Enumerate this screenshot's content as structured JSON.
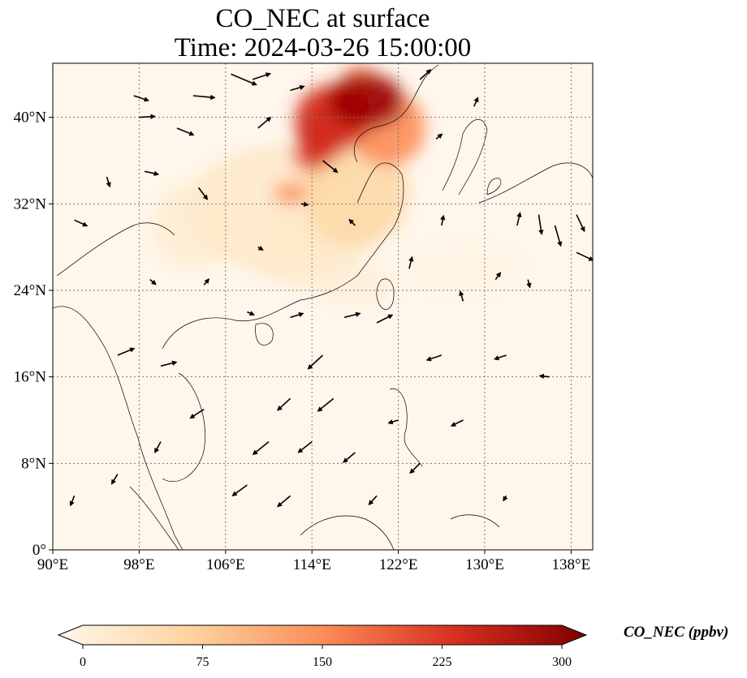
{
  "title": {
    "line1": "CO_NEC at surface",
    "line2": "Time: 2024-03-26 15:00:00"
  },
  "map": {
    "lon_range": [
      90,
      140
    ],
    "lat_range": [
      0,
      45
    ],
    "x_ticks": [
      {
        "value": 90,
        "label": "90°E"
      },
      {
        "value": 98,
        "label": "98°E"
      },
      {
        "value": 106,
        "label": "106°E"
      },
      {
        "value": 114,
        "label": "114°E"
      },
      {
        "value": 122,
        "label": "122°E"
      },
      {
        "value": 130,
        "label": "130°E"
      },
      {
        "value": 138,
        "label": "138°E"
      }
    ],
    "y_ticks": [
      {
        "value": 0,
        "label": "0°"
      },
      {
        "value": 8,
        "label": "8°N"
      },
      {
        "value": 16,
        "label": "16°N"
      },
      {
        "value": 24,
        "label": "24°N"
      },
      {
        "value": 32,
        "label": "32°N"
      },
      {
        "value": 40,
        "label": "40°N"
      }
    ],
    "gridlines": true,
    "colormap": "OrRd",
    "plumes": [
      {
        "lon": 111.5,
        "lat": 31.5,
        "rlon": 9,
        "rlat": 6,
        "value": 35
      },
      {
        "lon": 103,
        "lat": 30,
        "rlon": 4,
        "rlat": 4,
        "value": 25
      },
      {
        "lon": 118,
        "lat": 33,
        "rlon": 5,
        "rlat": 5,
        "value": 65
      },
      {
        "lon": 121,
        "lat": 39,
        "rlon": 3.5,
        "rlat": 3.5,
        "value": 150
      },
      {
        "lon": 116,
        "lat": 40,
        "rlon": 3.5,
        "rlat": 3,
        "value": 230
      },
      {
        "lon": 119,
        "lat": 41.5,
        "rlon": 3.5,
        "rlat": 2.5,
        "value": 280
      },
      {
        "lon": 115,
        "lat": 38.5,
        "rlon": 2.5,
        "rlat": 2.5,
        "value": 230
      },
      {
        "lon": 114,
        "lat": 36.5,
        "rlon": 1.8,
        "rlat": 1.5,
        "value": 210
      },
      {
        "lon": 112,
        "lat": 33,
        "rlon": 1.5,
        "rlat": 1,
        "value": 150
      },
      {
        "lon": 118.5,
        "lat": 43.5,
        "rlon": 1.8,
        "rlat": 1.2,
        "value": 180
      },
      {
        "lon": 113.5,
        "lat": 27.5,
        "rlon": 5,
        "rlat": 3.5,
        "value": 25
      },
      {
        "lon": 118,
        "lat": 24.5,
        "rlon": 4,
        "rlat": 2,
        "value": 18
      },
      {
        "lon": 128,
        "lat": 26,
        "rlon": 6,
        "rlat": 2.5,
        "value": 8
      }
    ],
    "wind_vectors": [
      {
        "lon": 106.5,
        "lat": 44,
        "u": 2.6,
        "v": -1.1
      },
      {
        "lon": 108.5,
        "lat": 43.5,
        "u": 1.8,
        "v": 0.6
      },
      {
        "lon": 112,
        "lat": 42.5,
        "u": 1.4,
        "v": 0.4
      },
      {
        "lon": 97.5,
        "lat": 42,
        "u": 1.5,
        "v": -0.5
      },
      {
        "lon": 103,
        "lat": 42,
        "u": 2.2,
        "v": -0.2
      },
      {
        "lon": 98,
        "lat": 40,
        "u": 1.6,
        "v": 0.1
      },
      {
        "lon": 101.5,
        "lat": 39,
        "u": 1.7,
        "v": -0.7
      },
      {
        "lon": 109,
        "lat": 39,
        "u": 1.3,
        "v": 1.1
      },
      {
        "lon": 115,
        "lat": 36,
        "u": 1.5,
        "v": -1.2
      },
      {
        "lon": 124,
        "lat": 43.5,
        "u": 1.1,
        "v": 1.0
      },
      {
        "lon": 129,
        "lat": 41,
        "u": 0.4,
        "v": 0.9
      },
      {
        "lon": 125.5,
        "lat": 38,
        "u": 0.6,
        "v": 0.5
      },
      {
        "lon": 92,
        "lat": 30.5,
        "u": 1.3,
        "v": -0.6
      },
      {
        "lon": 95,
        "lat": 34.5,
        "u": 0.3,
        "v": -1.0
      },
      {
        "lon": 98.5,
        "lat": 35,
        "u": 1.4,
        "v": -0.3
      },
      {
        "lon": 103.5,
        "lat": 33.5,
        "u": 0.9,
        "v": -1.2
      },
      {
        "lon": 99,
        "lat": 25,
        "u": 0.6,
        "v": -0.5
      },
      {
        "lon": 104,
        "lat": 24.5,
        "u": 0.5,
        "v": 0.6
      },
      {
        "lon": 108,
        "lat": 22,
        "u": 0.7,
        "v": -0.3
      },
      {
        "lon": 96,
        "lat": 18,
        "u": 1.7,
        "v": 0.7
      },
      {
        "lon": 100,
        "lat": 17,
        "u": 1.6,
        "v": 0.4
      },
      {
        "lon": 112,
        "lat": 21.5,
        "u": 1.3,
        "v": 0.4
      },
      {
        "lon": 117,
        "lat": 21.5,
        "u": 1.6,
        "v": 0.4
      },
      {
        "lon": 120,
        "lat": 21,
        "u": 1.6,
        "v": 0.8
      },
      {
        "lon": 115,
        "lat": 18,
        "u": -1.5,
        "v": -1.4
      },
      {
        "lon": 112,
        "lat": 14,
        "u": -1.3,
        "v": -1.2
      },
      {
        "lon": 116,
        "lat": 14,
        "u": -1.6,
        "v": -1.3
      },
      {
        "lon": 110,
        "lat": 10,
        "u": -1.6,
        "v": -1.3
      },
      {
        "lon": 114,
        "lat": 10,
        "u": -1.4,
        "v": -1.1
      },
      {
        "lon": 118,
        "lat": 9,
        "u": -1.2,
        "v": -1.0
      },
      {
        "lon": 108,
        "lat": 6,
        "u": -1.5,
        "v": -1.1
      },
      {
        "lon": 112,
        "lat": 5,
        "u": -1.3,
        "v": -1.1
      },
      {
        "lon": 104,
        "lat": 13,
        "u": -1.4,
        "v": -0.9
      },
      {
        "lon": 100,
        "lat": 10,
        "u": -0.6,
        "v": -1.1
      },
      {
        "lon": 96,
        "lat": 7,
        "u": -0.6,
        "v": -1.0
      },
      {
        "lon": 92,
        "lat": 5,
        "u": -0.4,
        "v": -1.0
      },
      {
        "lon": 120,
        "lat": 5,
        "u": -0.8,
        "v": -0.9
      },
      {
        "lon": 124,
        "lat": 8,
        "u": -1.0,
        "v": -1.0
      },
      {
        "lon": 128,
        "lat": 12,
        "u": -1.2,
        "v": -0.6
      },
      {
        "lon": 126,
        "lat": 18,
        "u": -1.5,
        "v": -0.5
      },
      {
        "lon": 132,
        "lat": 18,
        "u": -1.2,
        "v": -0.4
      },
      {
        "lon": 136,
        "lat": 16,
        "u": -1.0,
        "v": 0.1
      },
      {
        "lon": 132,
        "lat": 5,
        "u": -0.3,
        "v": -0.5
      },
      {
        "lon": 123,
        "lat": 26,
        "u": 0.3,
        "v": 1.2
      },
      {
        "lon": 126,
        "lat": 30,
        "u": 0.2,
        "v": 1.0
      },
      {
        "lon": 128,
        "lat": 23,
        "u": -0.3,
        "v": 1.0
      },
      {
        "lon": 131,
        "lat": 25,
        "u": 0.5,
        "v": 0.7
      },
      {
        "lon": 133,
        "lat": 30,
        "u": 0.3,
        "v": 1.3
      },
      {
        "lon": 134,
        "lat": 25,
        "u": 0.2,
        "v": -0.8
      },
      {
        "lon": 135,
        "lat": 31,
        "u": 0.3,
        "v": -2.0
      },
      {
        "lon": 136.5,
        "lat": 30,
        "u": 0.6,
        "v": -2.1
      },
      {
        "lon": 138.5,
        "lat": 27.5,
        "u": 1.7,
        "v": -0.8
      },
      {
        "lon": 138.5,
        "lat": 31,
        "u": 0.8,
        "v": -1.7
      },
      {
        "lon": 122,
        "lat": 12,
        "u": -1.0,
        "v": -0.3
      },
      {
        "lon": 118,
        "lat": 30,
        "u": -0.6,
        "v": 0.6
      },
      {
        "lon": 109,
        "lat": 28,
        "u": 0.5,
        "v": -0.3
      },
      {
        "lon": 113,
        "lat": 32,
        "u": 0.7,
        "v": -0.1
      }
    ]
  },
  "colorbar": {
    "min": 0,
    "max": 300,
    "ticks": [
      {
        "value": 0,
        "label": "0"
      },
      {
        "value": 75,
        "label": "75"
      },
      {
        "value": 150,
        "label": "150"
      },
      {
        "value": 225,
        "label": "225"
      },
      {
        "value": 300,
        "label": "300"
      }
    ],
    "label": "CO_NEC (ppbv)",
    "extend": "both"
  }
}
